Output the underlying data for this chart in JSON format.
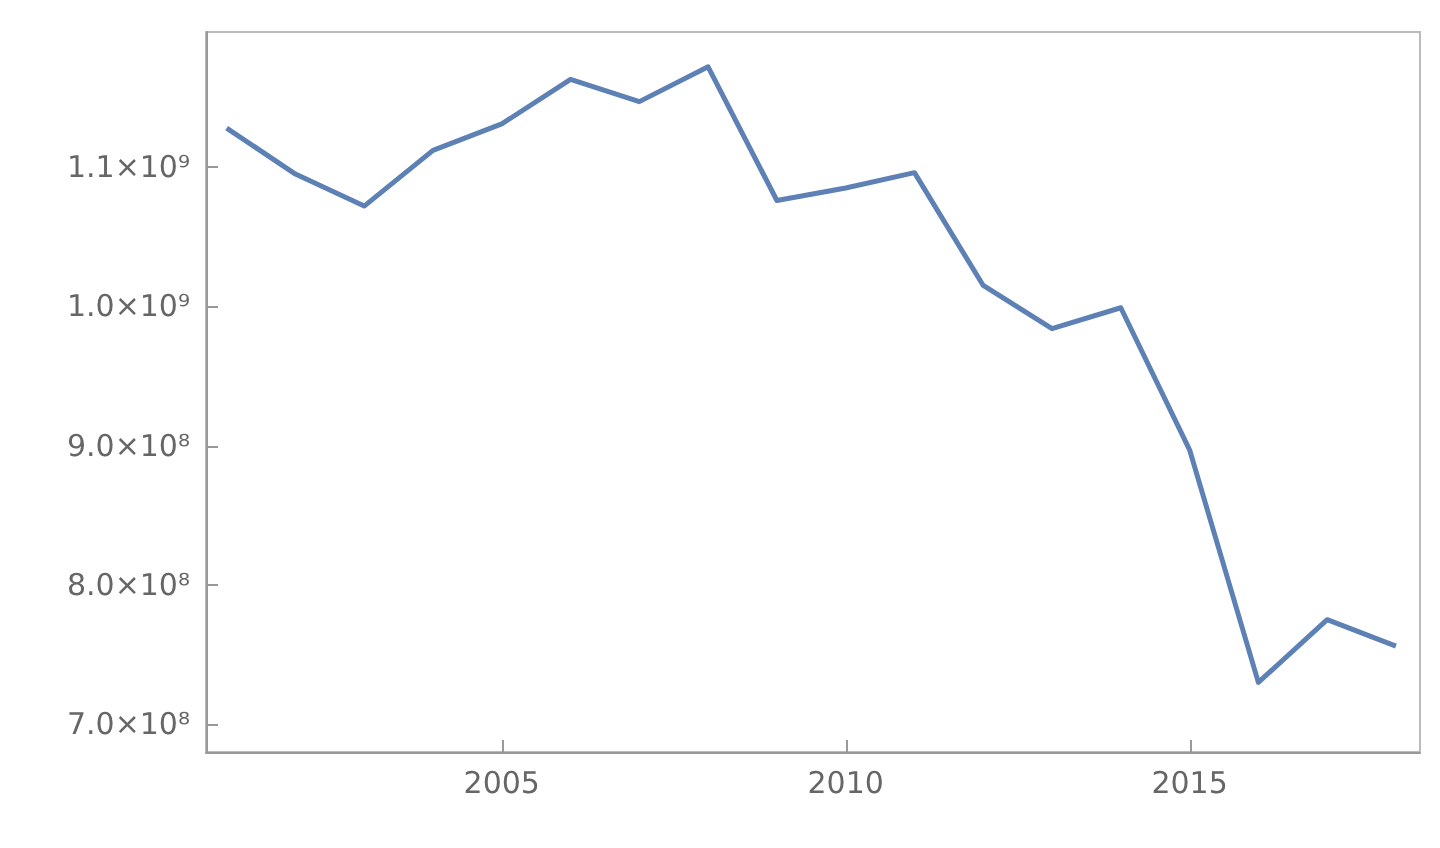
{
  "chart_data": {
    "type": "line",
    "x": [
      2001,
      2002,
      2003,
      2004,
      2005,
      2006,
      2007,
      2008,
      2009,
      2010,
      2011,
      2012,
      2013,
      2014,
      2015,
      2016,
      2017,
      2018
    ],
    "series": [
      {
        "color": "#5e81b5",
        "values": [
          1128000000.0,
          1095000000.0,
          1072000000.0,
          1112000000.0,
          1131000000.0,
          1163000000.0,
          1147000000.0,
          1172000000.0,
          1076000000.0,
          1085000000.0,
          1096000000.0,
          1015000000.0,
          984000000.0,
          999000000.0,
          897000000.0,
          730000000.0,
          775000000.0,
          756000000.0
        ]
      }
    ],
    "xlim": [
      2000.7,
      2018.35
    ],
    "xticks": [
      2005,
      2010,
      2015
    ],
    "ylim": [
      680000000.0,
      1197000000.0
    ],
    "yticks": [
      {
        "value": 700000000.0,
        "label": "7.0×10⁸"
      },
      {
        "value": 800000000.0,
        "label": "8.0×10⁸"
      },
      {
        "value": 900000000.0,
        "label": "9.0×10⁸"
      },
      {
        "value": 1000000000.0,
        "label": "1.0×10⁹"
      },
      {
        "value": 1100000000.0,
        "label": "1.1×10⁹"
      }
    ],
    "line_style": "solid"
  }
}
